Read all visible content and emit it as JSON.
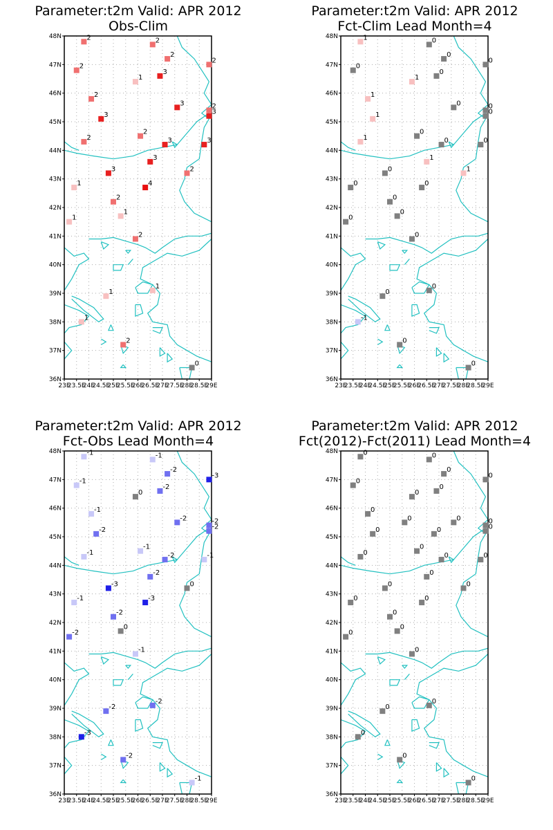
{
  "chart_data": [
    {
      "type": "scatter",
      "title": "Parameter:t2m Valid: APR 2012",
      "subtitle": "Obs-Clim",
      "scheme": "red",
      "xlabels": [
        "23E",
        "23.5E",
        "24E",
        "24.5E",
        "25E",
        "25.5E",
        "26E",
        "26.5E",
        "27E",
        "27.5E",
        "28E",
        "28.5E",
        "29E"
      ],
      "ylabels": [
        "36N",
        "37N",
        "38N",
        "39N",
        "40N",
        "41N",
        "42N",
        "43N",
        "44N",
        "45N",
        "46N",
        "47N",
        "48N"
      ],
      "xlim": [
        23,
        29
      ],
      "ylim": [
        36,
        48
      ],
      "grid": true,
      "points": [
        {
          "lon": 23.8,
          "lat": 47.8,
          "v": 2,
          "label": "2"
        },
        {
          "lon": 26.6,
          "lat": 47.7,
          "v": 2,
          "label": "2"
        },
        {
          "lon": 27.2,
          "lat": 47.2,
          "v": 2,
          "label": "2"
        },
        {
          "lon": 28.9,
          "lat": 47.0,
          "v": 2,
          "label": "2"
        },
        {
          "lon": 23.5,
          "lat": 46.8,
          "v": 2,
          "label": "2"
        },
        {
          "lon": 26.9,
          "lat": 46.6,
          "v": 3,
          "label": "3"
        },
        {
          "lon": 25.9,
          "lat": 46.4,
          "v": 1,
          "label": "1"
        },
        {
          "lon": 24.1,
          "lat": 45.8,
          "v": 2,
          "label": "2"
        },
        {
          "lon": 27.6,
          "lat": 45.5,
          "v": 3,
          "label": "3"
        },
        {
          "lon": 28.9,
          "lat": 45.4,
          "v": 2,
          "label": "2"
        },
        {
          "lon": 28.9,
          "lat": 45.2,
          "v": 3,
          "label": "3"
        },
        {
          "lon": 24.5,
          "lat": 45.1,
          "v": 3,
          "label": "3"
        },
        {
          "lon": 26.1,
          "lat": 44.5,
          "v": 2,
          "label": "2"
        },
        {
          "lon": 23.8,
          "lat": 44.3,
          "v": 2,
          "label": "2"
        },
        {
          "lon": 27.1,
          "lat": 44.2,
          "v": 3,
          "label": "3"
        },
        {
          "lon": 28.7,
          "lat": 44.2,
          "v": 3,
          "label": "3"
        },
        {
          "lon": 26.5,
          "lat": 43.6,
          "v": 3,
          "label": "3"
        },
        {
          "lon": 28.0,
          "lat": 43.2,
          "v": 2,
          "label": "2"
        },
        {
          "lon": 24.8,
          "lat": 43.2,
          "v": 3,
          "label": "3"
        },
        {
          "lon": 26.3,
          "lat": 42.7,
          "v": 4,
          "label": "4"
        },
        {
          "lon": 23.4,
          "lat": 42.7,
          "v": 1,
          "label": "1"
        },
        {
          "lon": 25.0,
          "lat": 42.2,
          "v": 2,
          "label": "2"
        },
        {
          "lon": 25.3,
          "lat": 41.7,
          "v": 1,
          "label": "1"
        },
        {
          "lon": 23.2,
          "lat": 41.5,
          "v": 1,
          "label": "1"
        },
        {
          "lon": 25.9,
          "lat": 40.9,
          "v": 2,
          "label": "2"
        },
        {
          "lon": 26.6,
          "lat": 39.1,
          "v": 1,
          "label": "1"
        },
        {
          "lon": 24.7,
          "lat": 38.9,
          "v": 1,
          "label": "1"
        },
        {
          "lon": 23.7,
          "lat": 38.0,
          "v": 1,
          "label": "1"
        },
        {
          "lon": 25.4,
          "lat": 37.2,
          "v": 2,
          "label": "2"
        },
        {
          "lon": 28.2,
          "lat": 36.4,
          "v": 0,
          "label": "0"
        }
      ]
    },
    {
      "type": "scatter",
      "title": "Parameter:t2m Valid: APR 2012",
      "subtitle": "Fct-Clim Lead Month=4",
      "scheme": "red",
      "xlabels": [
        "23E",
        "23.5E",
        "24E",
        "24.5E",
        "25E",
        "25.5E",
        "26E",
        "26.5E",
        "27E",
        "27.5E",
        "28E",
        "28.5E",
        "29E"
      ],
      "ylabels": [
        "36N",
        "37N",
        "38N",
        "39N",
        "40N",
        "41N",
        "42N",
        "43N",
        "44N",
        "45N",
        "46N",
        "47N",
        "48N"
      ],
      "xlim": [
        23,
        29
      ],
      "ylim": [
        36,
        48
      ],
      "grid": true,
      "points": [
        {
          "lon": 23.8,
          "lat": 47.8,
          "v": 1,
          "label": "1"
        },
        {
          "lon": 26.6,
          "lat": 47.7,
          "v": 0,
          "label": "0"
        },
        {
          "lon": 27.2,
          "lat": 47.2,
          "v": 0,
          "label": "0"
        },
        {
          "lon": 28.9,
          "lat": 47.0,
          "v": 0,
          "label": "0"
        },
        {
          "lon": 23.5,
          "lat": 46.8,
          "v": 0,
          "label": "0"
        },
        {
          "lon": 26.9,
          "lat": 46.6,
          "v": 0,
          "label": "0"
        },
        {
          "lon": 25.9,
          "lat": 46.4,
          "v": 1,
          "label": "1"
        },
        {
          "lon": 24.1,
          "lat": 45.8,
          "v": 1,
          "label": "1"
        },
        {
          "lon": 27.6,
          "lat": 45.5,
          "v": 0,
          "label": "0"
        },
        {
          "lon": 28.9,
          "lat": 45.4,
          "v": 0,
          "label": "0"
        },
        {
          "lon": 28.9,
          "lat": 45.2,
          "v": 0,
          "label": "0"
        },
        {
          "lon": 24.3,
          "lat": 45.1,
          "v": 1,
          "label": "1"
        },
        {
          "lon": 26.1,
          "lat": 44.5,
          "v": 0,
          "label": "0"
        },
        {
          "lon": 23.8,
          "lat": 44.3,
          "v": 1,
          "label": "1"
        },
        {
          "lon": 27.1,
          "lat": 44.2,
          "v": 0,
          "label": "0"
        },
        {
          "lon": 28.7,
          "lat": 44.2,
          "v": 0,
          "label": "0"
        },
        {
          "lon": 26.5,
          "lat": 43.6,
          "v": 1,
          "label": "1"
        },
        {
          "lon": 28.0,
          "lat": 43.2,
          "v": 1,
          "label": "1"
        },
        {
          "lon": 24.8,
          "lat": 43.2,
          "v": 0,
          "label": "0"
        },
        {
          "lon": 26.3,
          "lat": 42.7,
          "v": 0,
          "label": "0"
        },
        {
          "lon": 23.4,
          "lat": 42.7,
          "v": 0,
          "label": "0"
        },
        {
          "lon": 25.0,
          "lat": 42.2,
          "v": 0,
          "label": "0"
        },
        {
          "lon": 25.3,
          "lat": 41.7,
          "v": 0,
          "label": "0"
        },
        {
          "lon": 23.2,
          "lat": 41.5,
          "v": 0,
          "label": "0"
        },
        {
          "lon": 25.9,
          "lat": 40.9,
          "v": 0,
          "label": "0"
        },
        {
          "lon": 26.6,
          "lat": 39.1,
          "v": 0,
          "label": "0"
        },
        {
          "lon": 24.7,
          "lat": 38.9,
          "v": 0,
          "label": "0"
        },
        {
          "lon": 23.7,
          "lat": 38.0,
          "v": -1,
          "label": "-1"
        },
        {
          "lon": 25.4,
          "lat": 37.2,
          "v": 0,
          "label": "0"
        },
        {
          "lon": 28.2,
          "lat": 36.4,
          "v": 0,
          "label": "0"
        }
      ]
    },
    {
      "type": "scatter",
      "title": "Parameter:t2m Valid: APR 2012",
      "subtitle": "Fct-Obs Lead Month=4",
      "scheme": "blue",
      "xlabels": [
        "23E",
        "23.5E",
        "24E",
        "24.5E",
        "25E",
        "25.5E",
        "26E",
        "26.5E",
        "27E",
        "27.5E",
        "28E",
        "28.5E",
        "29E"
      ],
      "ylabels": [
        "36N",
        "37N",
        "38N",
        "39N",
        "40N",
        "41N",
        "42N",
        "43N",
        "44N",
        "45N",
        "46N",
        "47N",
        "48N"
      ],
      "xlim": [
        23,
        29
      ],
      "ylim": [
        36,
        48
      ],
      "grid": true,
      "points": [
        {
          "lon": 23.8,
          "lat": 47.8,
          "v": -1,
          "label": "-1"
        },
        {
          "lon": 26.6,
          "lat": 47.7,
          "v": -1,
          "label": "-1"
        },
        {
          "lon": 27.2,
          "lat": 47.2,
          "v": -2,
          "label": "-2"
        },
        {
          "lon": 28.9,
          "lat": 47.0,
          "v": -3,
          "label": "-3"
        },
        {
          "lon": 23.5,
          "lat": 46.8,
          "v": -1,
          "label": "-1"
        },
        {
          "lon": 26.9,
          "lat": 46.6,
          "v": -2,
          "label": "-2"
        },
        {
          "lon": 25.9,
          "lat": 46.4,
          "v": 0,
          "label": "0"
        },
        {
          "lon": 24.1,
          "lat": 45.8,
          "v": -1,
          "label": "-1"
        },
        {
          "lon": 27.6,
          "lat": 45.5,
          "v": -2,
          "label": "-2"
        },
        {
          "lon": 28.9,
          "lat": 45.4,
          "v": -2,
          "label": "-2"
        },
        {
          "lon": 28.9,
          "lat": 45.2,
          "v": -2,
          "label": "-2"
        },
        {
          "lon": 24.3,
          "lat": 45.1,
          "v": -2,
          "label": "-2"
        },
        {
          "lon": 26.1,
          "lat": 44.5,
          "v": -1,
          "label": "-1"
        },
        {
          "lon": 23.8,
          "lat": 44.3,
          "v": -1,
          "label": "-1"
        },
        {
          "lon": 27.1,
          "lat": 44.2,
          "v": -2,
          "label": "-2"
        },
        {
          "lon": 28.7,
          "lat": 44.2,
          "v": -1,
          "label": "-1"
        },
        {
          "lon": 26.5,
          "lat": 43.6,
          "v": -2,
          "label": "-2"
        },
        {
          "lon": 28.0,
          "lat": 43.2,
          "v": 0,
          "label": "0"
        },
        {
          "lon": 24.8,
          "lat": 43.2,
          "v": -3,
          "label": "-3"
        },
        {
          "lon": 26.3,
          "lat": 42.7,
          "v": -3,
          "label": "-3"
        },
        {
          "lon": 23.4,
          "lat": 42.7,
          "v": -1,
          "label": "-1"
        },
        {
          "lon": 25.0,
          "lat": 42.2,
          "v": -2,
          "label": "-2"
        },
        {
          "lon": 25.3,
          "lat": 41.7,
          "v": 0,
          "label": "0"
        },
        {
          "lon": 23.2,
          "lat": 41.5,
          "v": -2,
          "label": "-2"
        },
        {
          "lon": 25.9,
          "lat": 40.9,
          "v": -1,
          "label": "-1"
        },
        {
          "lon": 26.6,
          "lat": 39.1,
          "v": -2,
          "label": "-2"
        },
        {
          "lon": 24.7,
          "lat": 38.9,
          "v": -2,
          "label": "-2"
        },
        {
          "lon": 23.7,
          "lat": 38.0,
          "v": -3,
          "label": "-3"
        },
        {
          "lon": 25.4,
          "lat": 37.2,
          "v": -2,
          "label": "-2"
        },
        {
          "lon": 28.2,
          "lat": 36.4,
          "v": -1,
          "label": "-1"
        }
      ]
    },
    {
      "type": "scatter",
      "title": "Parameter:t2m Valid: APR 2012",
      "subtitle": "Fct(2012)-Fct(2011) Lead Month=4",
      "scheme": "red",
      "xlabels": [
        "23E",
        "23.5E",
        "24E",
        "24.5E",
        "25E",
        "25.5E",
        "26E",
        "26.5E",
        "27E",
        "27.5E",
        "28E",
        "28.5E",
        "29E"
      ],
      "ylabels": [
        "36N",
        "37N",
        "38N",
        "39N",
        "40N",
        "41N",
        "42N",
        "43N",
        "44N",
        "45N",
        "46N",
        "47N",
        "48N"
      ],
      "xlim": [
        23,
        29
      ],
      "ylim": [
        36,
        48
      ],
      "grid": true,
      "points": [
        {
          "lon": 23.8,
          "lat": 47.8,
          "v": 0,
          "label": "0"
        },
        {
          "lon": 26.6,
          "lat": 47.7,
          "v": 0,
          "label": "0"
        },
        {
          "lon": 27.2,
          "lat": 47.2,
          "v": 0,
          "label": "0"
        },
        {
          "lon": 28.9,
          "lat": 47.0,
          "v": 0,
          "label": "0"
        },
        {
          "lon": 23.5,
          "lat": 46.8,
          "v": 0,
          "label": "0"
        },
        {
          "lon": 26.9,
          "lat": 46.6,
          "v": 0,
          "label": "0"
        },
        {
          "lon": 25.9,
          "lat": 46.4,
          "v": 0,
          "label": "0"
        },
        {
          "lon": 24.1,
          "lat": 45.8,
          "v": 0,
          "label": "0"
        },
        {
          "lon": 25.6,
          "lat": 45.5,
          "v": 0,
          "label": "0"
        },
        {
          "lon": 27.6,
          "lat": 45.5,
          "v": 0,
          "label": "0"
        },
        {
          "lon": 28.9,
          "lat": 45.4,
          "v": 0,
          "label": "0"
        },
        {
          "lon": 28.9,
          "lat": 45.2,
          "v": 0,
          "label": "0"
        },
        {
          "lon": 24.3,
          "lat": 45.1,
          "v": 0,
          "label": "0"
        },
        {
          "lon": 26.8,
          "lat": 45.1,
          "v": 0,
          "label": "0"
        },
        {
          "lon": 26.1,
          "lat": 44.5,
          "v": 0,
          "label": "0"
        },
        {
          "lon": 23.8,
          "lat": 44.3,
          "v": 0,
          "label": "0"
        },
        {
          "lon": 27.1,
          "lat": 44.2,
          "v": 0,
          "label": "0"
        },
        {
          "lon": 28.7,
          "lat": 44.2,
          "v": 0,
          "label": "0"
        },
        {
          "lon": 26.5,
          "lat": 43.6,
          "v": 0,
          "label": "0"
        },
        {
          "lon": 28.0,
          "lat": 43.2,
          "v": 0,
          "label": "0"
        },
        {
          "lon": 24.8,
          "lat": 43.2,
          "v": 0,
          "label": "0"
        },
        {
          "lon": 26.3,
          "lat": 42.7,
          "v": 0,
          "label": "0"
        },
        {
          "lon": 23.4,
          "lat": 42.7,
          "v": 0,
          "label": "0"
        },
        {
          "lon": 25.0,
          "lat": 42.2,
          "v": 0,
          "label": "0"
        },
        {
          "lon": 25.3,
          "lat": 41.7,
          "v": 0,
          "label": "0"
        },
        {
          "lon": 23.2,
          "lat": 41.5,
          "v": 0,
          "label": "0"
        },
        {
          "lon": 25.9,
          "lat": 40.9,
          "v": 0,
          "label": "0"
        },
        {
          "lon": 26.6,
          "lat": 39.1,
          "v": 0,
          "label": "0"
        },
        {
          "lon": 24.7,
          "lat": 38.9,
          "v": 0,
          "label": "0"
        },
        {
          "lon": 23.7,
          "lat": 38.0,
          "v": 0,
          "label": "0"
        },
        {
          "lon": 25.4,
          "lat": 37.2,
          "v": 0,
          "label": "0"
        },
        {
          "lon": 28.2,
          "lat": 36.4,
          "v": 0,
          "label": "0"
        }
      ]
    }
  ],
  "colors": {
    "coastline": "#20c0c0",
    "grid": "#aaaaaa",
    "zero": "#808080",
    "pos1": "#f8c0c0",
    "pos2": "#f07070",
    "pos3": "#e82020",
    "pos4": "#e81010",
    "neg1": "#c8c8f8",
    "neg2": "#7070f0",
    "neg3": "#2020e8"
  }
}
